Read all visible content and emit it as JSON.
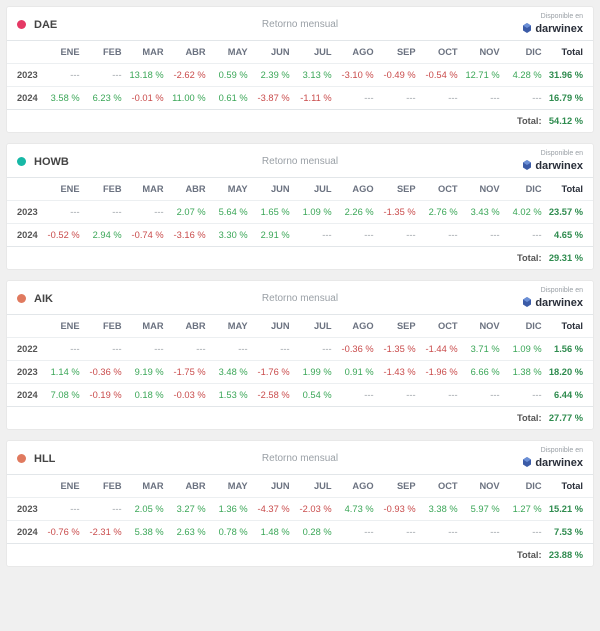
{
  "months": [
    "ENE",
    "FEB",
    "MAR",
    "ABR",
    "MAY",
    "JUN",
    "JUL",
    "AGO",
    "SEP",
    "OCT",
    "NOV",
    "DIC"
  ],
  "total_label": "Total",
  "grand_total_label": "Total:",
  "subtitle": "Retorno mensual",
  "brand_top": "Disponible en",
  "brand_name": "darwinex",
  "colors": {
    "positive": "#3aa657",
    "negative": "#c94b4b",
    "neutral": "#9aa0a6",
    "total_pos": "#2e8b4e",
    "total_neg": "#c94b4b"
  },
  "cards": [
    {
      "ticker": "DAE",
      "dot_color": "#e53965",
      "rows": [
        {
          "year": "2023",
          "vals": [
            null,
            null,
            13.18,
            -2.62,
            0.59,
            2.39,
            3.13,
            -3.1,
            -0.49,
            -0.54,
            12.71,
            4.28
          ],
          "tot": 31.96
        },
        {
          "year": "2024",
          "vals": [
            3.58,
            6.23,
            -0.01,
            11.0,
            0.61,
            -3.87,
            -1.11,
            null,
            null,
            null,
            null,
            null
          ],
          "tot": 16.79
        }
      ],
      "grand": 54.12
    },
    {
      "ticker": "HOWB",
      "dot_color": "#17b8a6",
      "rows": [
        {
          "year": "2023",
          "vals": [
            null,
            null,
            null,
            2.07,
            5.64,
            1.65,
            1.09,
            2.26,
            -1.35,
            2.76,
            3.43,
            4.02
          ],
          "tot": 23.57
        },
        {
          "year": "2024",
          "vals": [
            -0.52,
            2.94,
            -0.74,
            -3.16,
            3.3,
            2.91,
            null,
            null,
            null,
            null,
            null,
            null
          ],
          "tot": 4.65
        }
      ],
      "grand": 29.31
    },
    {
      "ticker": "AIK",
      "dot_color": "#e07a5f",
      "rows": [
        {
          "year": "2022",
          "vals": [
            null,
            null,
            null,
            null,
            null,
            null,
            null,
            -0.36,
            -1.35,
            -1.44,
            3.71,
            1.09
          ],
          "tot": 1.56
        },
        {
          "year": "2023",
          "vals": [
            1.14,
            -0.36,
            9.19,
            -1.75,
            3.48,
            -1.76,
            1.99,
            0.91,
            -1.43,
            -1.96,
            6.66,
            1.38
          ],
          "tot": 18.2
        },
        {
          "year": "2024",
          "vals": [
            7.08,
            -0.19,
            0.18,
            -0.03,
            1.53,
            -2.58,
            0.54,
            null,
            null,
            null,
            null,
            null
          ],
          "tot": 6.44
        }
      ],
      "grand": 27.77
    },
    {
      "ticker": "HLL",
      "dot_color": "#e07a5f",
      "rows": [
        {
          "year": "2023",
          "vals": [
            null,
            null,
            2.05,
            3.27,
            1.36,
            -4.37,
            -2.03,
            4.73,
            -0.93,
            3.38,
            5.97,
            1.27
          ],
          "tot": 15.21
        },
        {
          "year": "2024",
          "vals": [
            -0.76,
            -2.31,
            5.38,
            2.63,
            0.78,
            1.48,
            0.28,
            null,
            null,
            null,
            null,
            null
          ],
          "tot": 7.53
        }
      ],
      "grand": 23.88
    }
  ]
}
